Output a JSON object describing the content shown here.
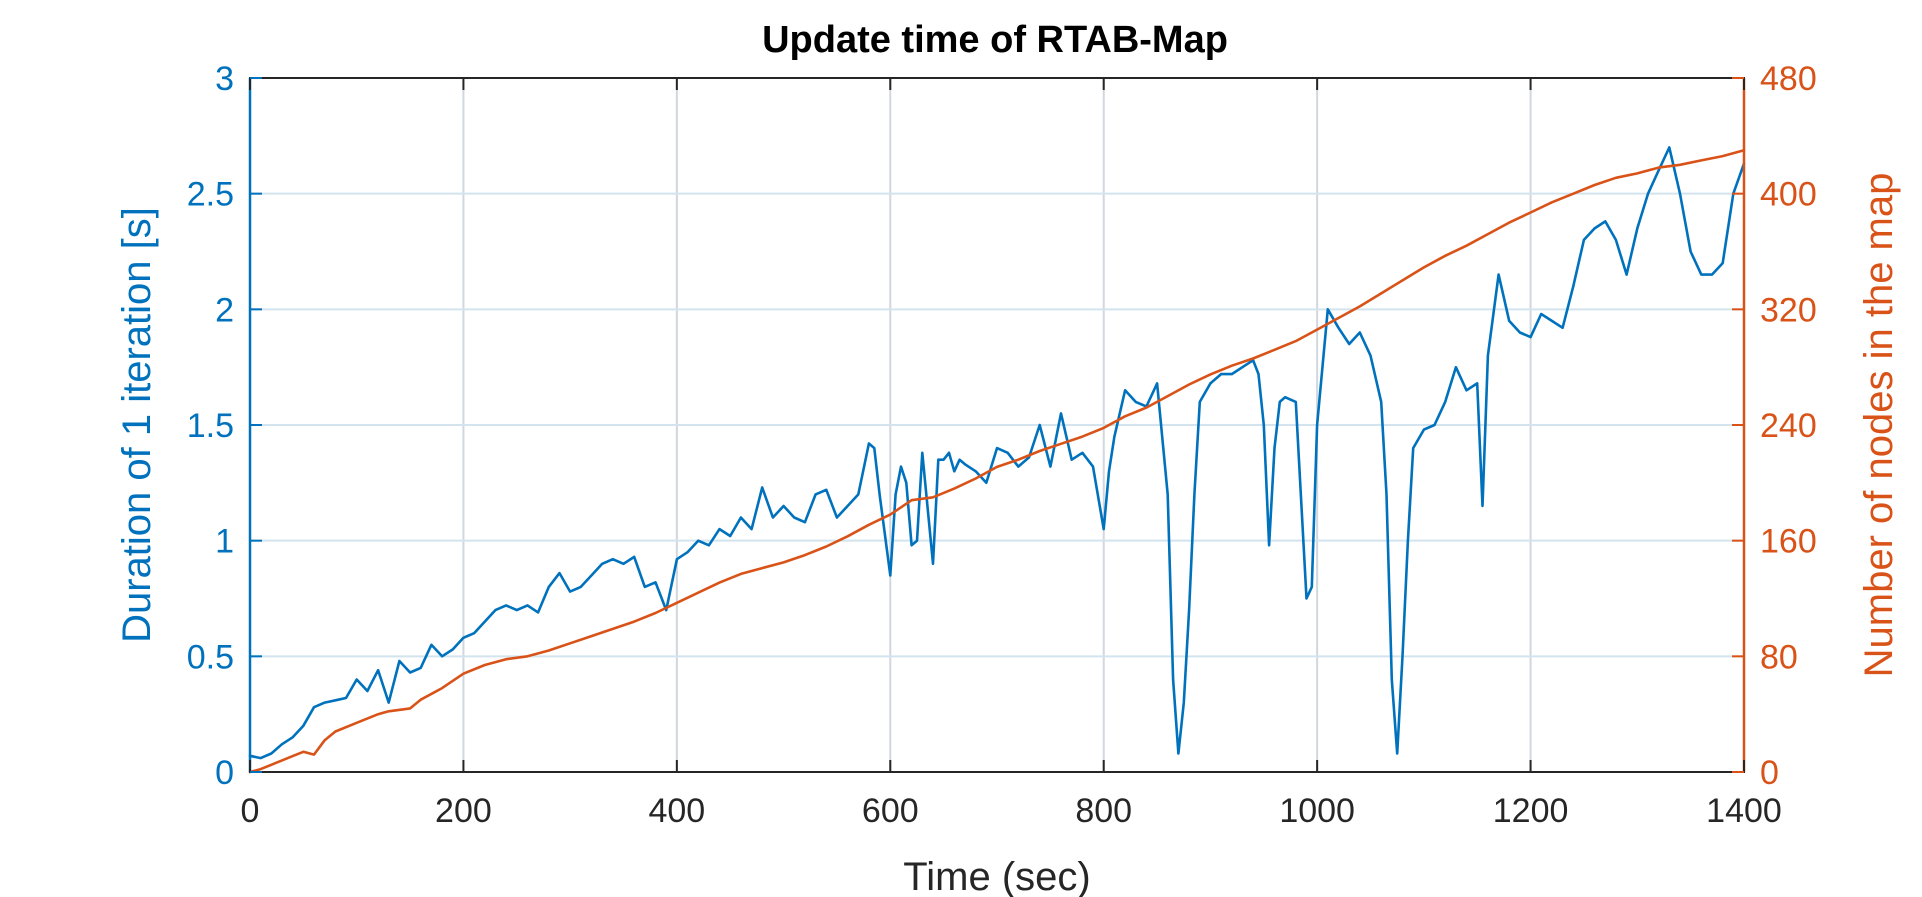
{
  "chart_data": {
    "type": "line",
    "title": "Update time of RTAB-Map",
    "xlabel": "Time (sec)",
    "ylabel_left": "Duration of 1 iteration [s]",
    "ylabel_right": "Number of nodes in the map",
    "xlim": [
      0,
      1400
    ],
    "ylim_left": [
      0,
      3
    ],
    "ylim_right": [
      0,
      480
    ],
    "x_ticks": [
      "0",
      "200",
      "400",
      "600",
      "800",
      "1000",
      "1200",
      "1400"
    ],
    "y_left_ticks": [
      "0",
      "0.5",
      "1",
      "1.5",
      "2",
      "2.5",
      "3"
    ],
    "y_right_ticks": [
      "0",
      "80",
      "160",
      "240",
      "320",
      "400",
      "480"
    ],
    "grid": true,
    "colors": {
      "left": "#0072BD",
      "right": "#D95319",
      "axis": "#262626",
      "grid": "#d0d7de"
    },
    "series": [
      {
        "axis": "left",
        "x": [
          0,
          10,
          20,
          30,
          40,
          50,
          60,
          70,
          80,
          90,
          100,
          110,
          120,
          130,
          140,
          150,
          160,
          170,
          180,
          190,
          200,
          210,
          220,
          230,
          240,
          250,
          260,
          270,
          280,
          290,
          300,
          310,
          320,
          330,
          340,
          350,
          360,
          370,
          380,
          390,
          400,
          410,
          420,
          430,
          440,
          450,
          460,
          470,
          480,
          490,
          500,
          510,
          520,
          530,
          540,
          550,
          560,
          570,
          580,
          585,
          590,
          600,
          605,
          610,
          615,
          620,
          625,
          630,
          640,
          645,
          650,
          655,
          660,
          665,
          670,
          680,
          690,
          700,
          710,
          720,
          730,
          740,
          750,
          760,
          770,
          780,
          790,
          800,
          805,
          810,
          820,
          830,
          840,
          850,
          860,
          865,
          870,
          875,
          880,
          885,
          890,
          900,
          910,
          920,
          930,
          940,
          945,
          950,
          955,
          960,
          965,
          970,
          980,
          990,
          995,
          1000,
          1010,
          1020,
          1030,
          1040,
          1050,
          1060,
          1065,
          1070,
          1075,
          1080,
          1085,
          1090,
          1100,
          1110,
          1120,
          1130,
          1140,
          1150,
          1155,
          1160,
          1170,
          1180,
          1190,
          1200,
          1210,
          1220,
          1230,
          1240,
          1250,
          1260,
          1270,
          1280,
          1290,
          1300,
          1310,
          1320,
          1330,
          1340,
          1350,
          1360,
          1370,
          1380,
          1390,
          1400
        ],
        "values": [
          0.07,
          0.06,
          0.08,
          0.12,
          0.15,
          0.2,
          0.28,
          0.3,
          0.31,
          0.32,
          0.4,
          0.35,
          0.44,
          0.3,
          0.48,
          0.43,
          0.45,
          0.55,
          0.5,
          0.53,
          0.58,
          0.6,
          0.65,
          0.7,
          0.72,
          0.7,
          0.72,
          0.69,
          0.8,
          0.86,
          0.78,
          0.8,
          0.85,
          0.9,
          0.92,
          0.9,
          0.93,
          0.8,
          0.82,
          0.7,
          0.92,
          0.95,
          1.0,
          0.98,
          1.05,
          1.02,
          1.1,
          1.05,
          1.23,
          1.1,
          1.15,
          1.1,
          1.08,
          1.2,
          1.22,
          1.1,
          1.15,
          1.2,
          1.42,
          1.4,
          1.2,
          0.85,
          1.2,
          1.32,
          1.25,
          0.98,
          1.0,
          1.38,
          0.9,
          1.35,
          1.35,
          1.38,
          1.3,
          1.35,
          1.33,
          1.3,
          1.25,
          1.4,
          1.38,
          1.32,
          1.36,
          1.5,
          1.32,
          1.55,
          1.35,
          1.38,
          1.32,
          1.05,
          1.3,
          1.45,
          1.65,
          1.6,
          1.58,
          1.68,
          1.2,
          0.4,
          0.08,
          0.3,
          0.7,
          1.2,
          1.6,
          1.68,
          1.72,
          1.72,
          1.75,
          1.78,
          1.72,
          1.5,
          0.98,
          1.4,
          1.6,
          1.62,
          1.6,
          0.75,
          0.8,
          1.5,
          2.0,
          1.92,
          1.85,
          1.9,
          1.8,
          1.6,
          1.2,
          0.4,
          0.08,
          0.5,
          1.0,
          1.4,
          1.48,
          1.5,
          1.6,
          1.75,
          1.65,
          1.68,
          1.15,
          1.8,
          2.15,
          1.95,
          1.9,
          1.88,
          1.98,
          1.95,
          1.92,
          2.1,
          2.3,
          2.35,
          2.38,
          2.3,
          2.15,
          2.35,
          2.5,
          2.6,
          2.7,
          2.5,
          2.25,
          2.15,
          2.15,
          2.2,
          2.5,
          2.63
        ]
      },
      {
        "axis": "right",
        "x": [
          0,
          10,
          20,
          30,
          40,
          50,
          60,
          70,
          80,
          100,
          120,
          130,
          150,
          160,
          180,
          200,
          220,
          240,
          260,
          280,
          300,
          320,
          340,
          360,
          380,
          400,
          420,
          440,
          460,
          480,
          500,
          520,
          540,
          560,
          580,
          600,
          620,
          640,
          660,
          680,
          700,
          720,
          740,
          760,
          780,
          800,
          820,
          840,
          860,
          880,
          900,
          920,
          940,
          960,
          980,
          1000,
          1020,
          1040,
          1060,
          1080,
          1100,
          1120,
          1140,
          1160,
          1180,
          1200,
          1220,
          1240,
          1260,
          1280,
          1300,
          1320,
          1340,
          1360,
          1380,
          1400
        ],
        "values": [
          0,
          2,
          5,
          8,
          11,
          14,
          12,
          22,
          28,
          34,
          40,
          42,
          44,
          50,
          58,
          68,
          74,
          78,
          80,
          84,
          89,
          94,
          99,
          104,
          110,
          117,
          124,
          131,
          137,
          141,
          145,
          150,
          156,
          163,
          171,
          178,
          188,
          190,
          196,
          203,
          211,
          216,
          222,
          227,
          232,
          238,
          246,
          252,
          260,
          268,
          275,
          281,
          286,
          292,
          298,
          306,
          314,
          322,
          331,
          340,
          349,
          357,
          364,
          372,
          380,
          387,
          394,
          400,
          406,
          411,
          414,
          418,
          420,
          423,
          426,
          430
        ]
      }
    ]
  }
}
